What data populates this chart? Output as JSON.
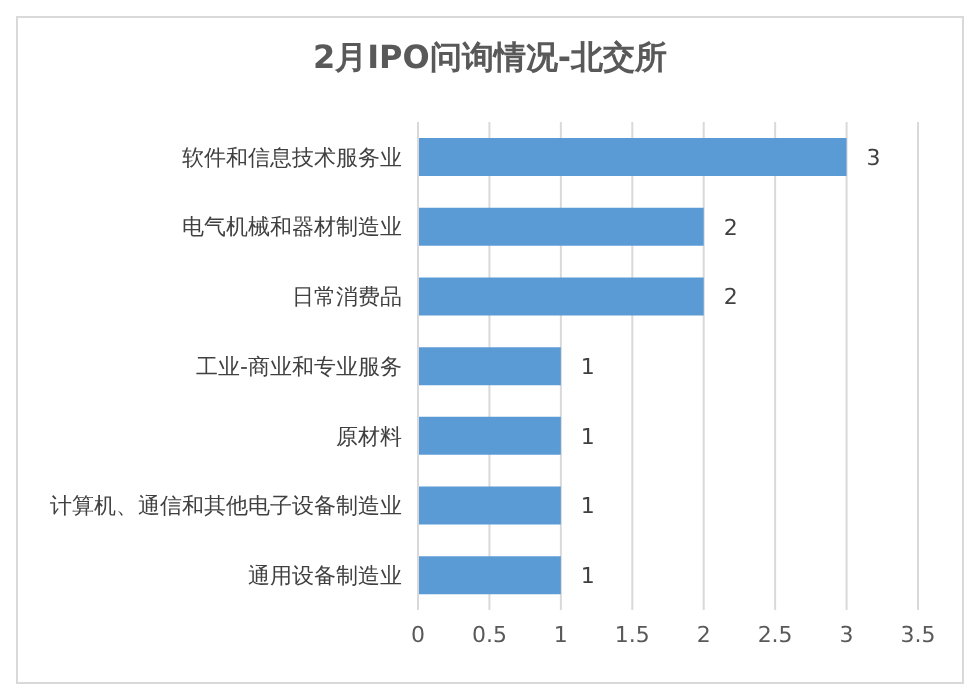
{
  "chart_data": {
    "type": "bar",
    "orientation": "horizontal",
    "title": "2月IPO问询情况-北交所",
    "categories": [
      "软件和信息技术服务业",
      "电气机械和器材制造业",
      "日常消费品",
      "工业-商业和专业服务",
      "原材料",
      "计算机、通信和其他电子设备制造业",
      "通用设备制造业"
    ],
    "values": [
      3,
      2,
      2,
      1,
      1,
      1,
      1
    ],
    "color": "#5b9bd5",
    "xlim": [
      0,
      3.5
    ],
    "xticks": [
      0,
      0.5,
      1,
      1.5,
      2,
      2.5,
      3,
      3.5
    ],
    "grid": "x",
    "data_labels": true
  }
}
